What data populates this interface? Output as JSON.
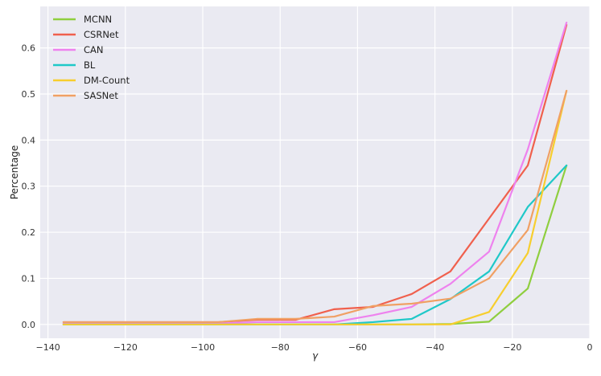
{
  "chart_data": {
    "type": "line",
    "title": "",
    "xlabel": "γ",
    "ylabel": "Percentage",
    "xlim": [
      -142,
      0
    ],
    "ylim": [
      -0.03,
      0.69
    ],
    "xticks": [
      -140,
      -120,
      -100,
      -80,
      -60,
      -40,
      -20,
      0
    ],
    "yticks": [
      0.0,
      0.1,
      0.2,
      0.3,
      0.4,
      0.5,
      0.6
    ],
    "grid": true,
    "legend_position": "top-left",
    "x": [
      -136,
      -126,
      -116,
      -106,
      -96,
      -86,
      -76,
      -66,
      -56,
      -46,
      -36,
      -26,
      -16,
      -6
    ],
    "series": [
      {
        "name": "MCNN",
        "color": "#8fce3f",
        "values": [
          0,
          0,
          0,
          0,
          0,
          0,
          0,
          0,
          0,
          0,
          0.001,
          0.006,
          0.078,
          0.345
        ]
      },
      {
        "name": "CSRNet",
        "color": "#f0604d",
        "values": [
          0.005,
          0.005,
          0.005,
          0.005,
          0.005,
          0.01,
          0.01,
          0.033,
          0.038,
          0.066,
          0.115,
          0.23,
          0.345,
          0.65
        ]
      },
      {
        "name": "CAN",
        "color": "#ee82ee",
        "values": [
          0.002,
          0.002,
          0.002,
          0.002,
          0.002,
          0.005,
          0.005,
          0.005,
          0.02,
          0.038,
          0.088,
          0.158,
          0.38,
          0.655
        ]
      },
      {
        "name": "BL",
        "color": "#1fc8c8",
        "values": [
          0,
          0,
          0,
          0,
          0,
          0,
          0,
          0,
          0.005,
          0.012,
          0.055,
          0.115,
          0.255,
          0.345
        ]
      },
      {
        "name": "DM-Count",
        "color": "#f7ce2e",
        "values": [
          0,
          0,
          0,
          0,
          0,
          0,
          0,
          0,
          0,
          0,
          0,
          0.027,
          0.155,
          0.507
        ]
      },
      {
        "name": "SASNet",
        "color": "#f0a064",
        "values": [
          0.005,
          0.005,
          0.005,
          0.005,
          0.005,
          0.012,
          0.012,
          0.017,
          0.04,
          0.045,
          0.056,
          0.1,
          0.205,
          0.507
        ]
      }
    ]
  }
}
